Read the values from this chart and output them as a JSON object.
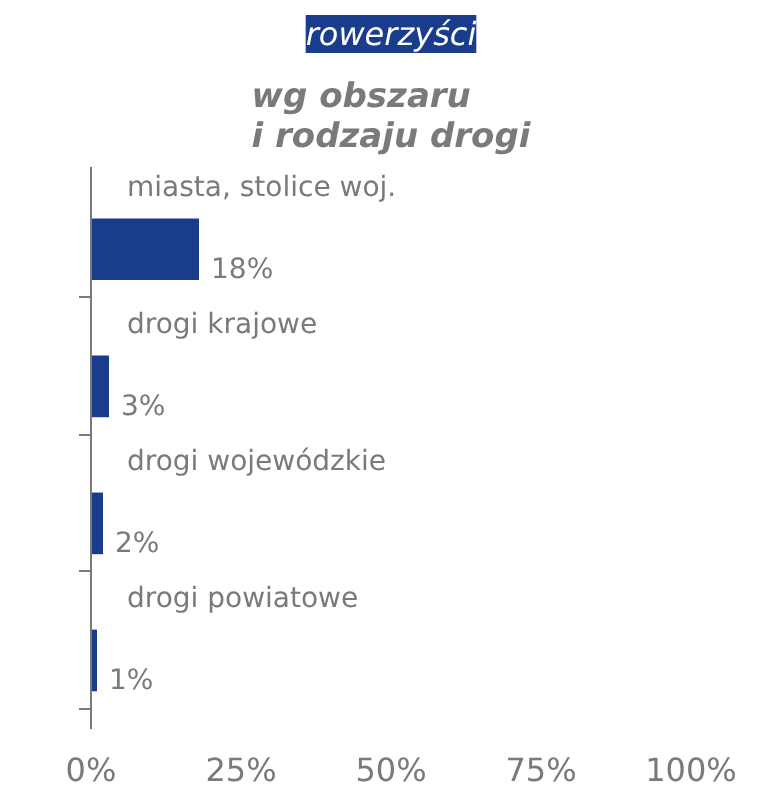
{
  "chart_data": {
    "type": "bar",
    "orientation": "horizontal",
    "title": "rowerzyści",
    "subtitle": "wg obszaru\ni rodzaju drogi",
    "categories": [
      "miasta, stolice woj.",
      "drogi krajowe",
      "drogi wojewódzkie",
      "drogi powiatowe"
    ],
    "values": [
      18,
      3,
      2,
      1
    ],
    "color": "#1a3c8c",
    "value_labels": [
      "18%",
      "3%",
      "2%",
      "1%"
    ],
    "xlim": [
      0,
      100
    ],
    "xticks": [
      {
        "value": 0,
        "label": "0%"
      },
      {
        "value": 25,
        "label": "25%"
      },
      {
        "value": 50,
        "label": "50%"
      },
      {
        "value": 75,
        "label": "75%"
      },
      {
        "value": 100,
        "label": "100%"
      }
    ],
    "grid": false,
    "tick_labels": "x"
  }
}
